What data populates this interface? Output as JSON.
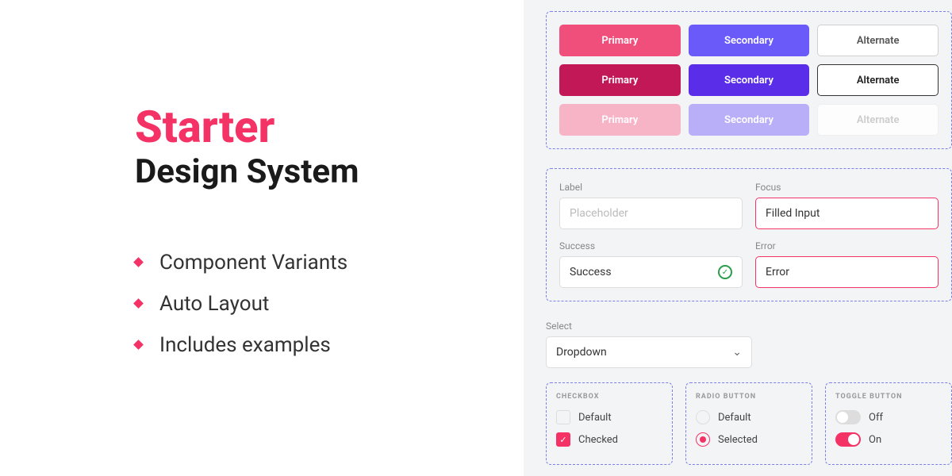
{
  "hero": {
    "title_line1": "Starter",
    "title_line2": "Design System",
    "bullets": [
      "Component Variants",
      "Auto Layout",
      "Includes examples"
    ]
  },
  "colors": {
    "accent": "#f53265",
    "secondary": "#6a5af9",
    "dashed_border": "#7c7fe8",
    "right_bg": "#f3f4f6"
  },
  "buttons": {
    "primary_label": "Primary",
    "secondary_label": "Secondary",
    "alternate_label": "Alternate"
  },
  "inputs": {
    "label_label": "Label",
    "label_placeholder": "Placeholder",
    "focus_label": "Focus",
    "focus_value": "Filled Input",
    "success_label": "Success",
    "success_value": "Success",
    "error_label": "Error",
    "error_value": "Error"
  },
  "select": {
    "label": "Select",
    "value": "Dropdown"
  },
  "checkbox": {
    "heading": "CHECKBOX",
    "default": "Default",
    "checked": "Checked"
  },
  "radio": {
    "heading": "RADIO BUTTON",
    "default": "Default",
    "selected": "Selected"
  },
  "toggle": {
    "heading": "TOGGLE BUTTON",
    "off": "Off",
    "on": "On"
  }
}
